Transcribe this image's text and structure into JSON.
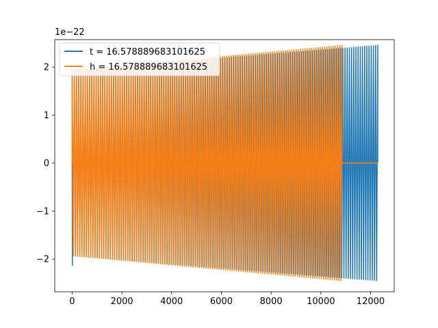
{
  "chart_data": {
    "type": "line",
    "title": "",
    "xlabel": "",
    "ylabel": "",
    "y_offset_label": "1e−22",
    "xlim": [
      -700,
      12950
    ],
    "ylim": [
      -2.68,
      2.57
    ],
    "xticks": [
      0,
      2000,
      4000,
      6000,
      8000,
      10000,
      12000
    ],
    "xtick_labels": [
      "0",
      "2000",
      "4000",
      "6000",
      "8000",
      "10000",
      "12000"
    ],
    "yticks": [
      -2,
      -1,
      0,
      1,
      2
    ],
    "ytick_labels": [
      "−2",
      "−1",
      "0",
      "1",
      "2"
    ],
    "grid": false,
    "legend_position": "top-left",
    "series": [
      {
        "name": "t = 16.578889683101625",
        "color": "#1f77b4",
        "x_range": [
          0,
          12288
        ],
        "amplitude_start": 1.93,
        "amplitude_end": 2.45,
        "cycles": 140,
        "initial_spike": -2.13
      },
      {
        "name": "h = 16.578889683101625",
        "color": "#ff7f0e",
        "x_range": [
          0,
          10850
        ],
        "amplitude_start": 1.93,
        "amplitude_end": 2.45,
        "cycles": 124,
        "flat_after": [
          10850,
          12288
        ],
        "flat_value": 0
      }
    ]
  }
}
